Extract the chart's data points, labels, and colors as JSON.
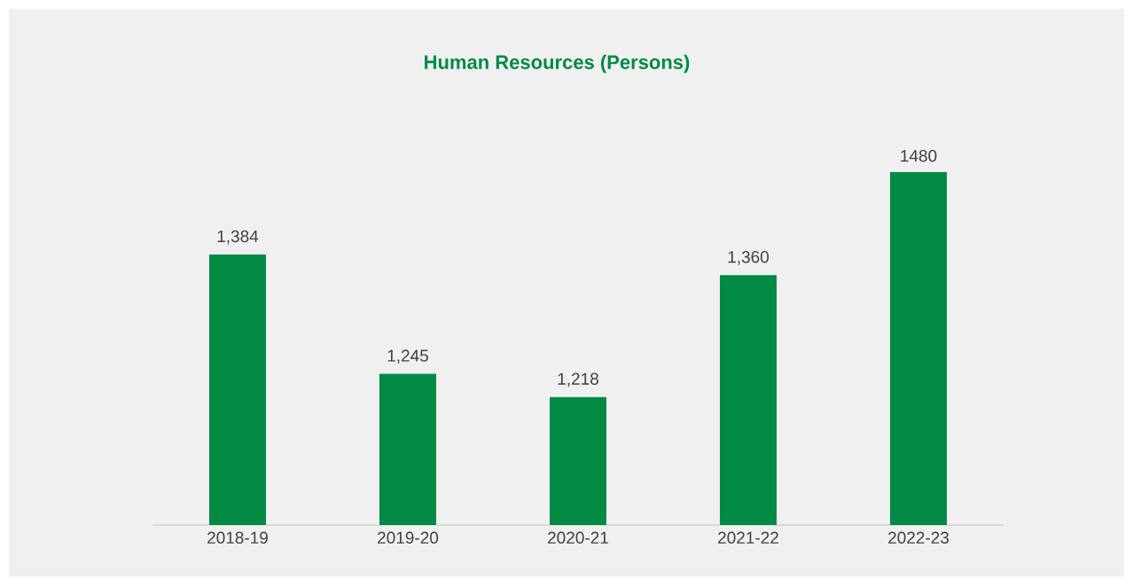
{
  "chart_data": {
    "type": "bar",
    "title": "Human Resources (Persons)",
    "categories": [
      "2018-19",
      "2019-20",
      "2020-21",
      "2021-22",
      "2022-23"
    ],
    "values": [
      1384,
      1245,
      1218,
      1360,
      1480
    ],
    "value_labels": [
      "1,384",
      "1,245",
      "1,218",
      "1,360",
      "1480"
    ],
    "color": "#008a44",
    "ylim": [
      1069,
      1480
    ]
  }
}
